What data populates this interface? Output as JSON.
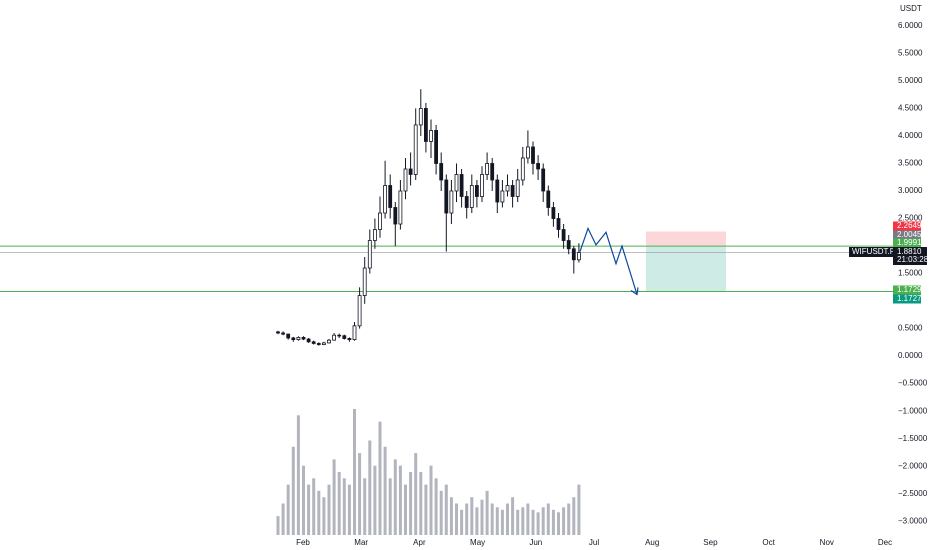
{
  "chart_data": {
    "type": "candlestick",
    "axis_label": "USDT",
    "symbol": "WIFUSDT.P",
    "countdown": "21:03:28",
    "ylim": [
      -3.25,
      6.47
    ],
    "yticks": [
      {
        "value": 6,
        "label": "6.0000"
      },
      {
        "value": 5.5,
        "label": "5.5000"
      },
      {
        "value": 5,
        "label": "5.0000"
      },
      {
        "value": 4.5,
        "label": "4.5000"
      },
      {
        "value": 4,
        "label": "4.0000"
      },
      {
        "value": 3.5,
        "label": "3.5000"
      },
      {
        "value": 3,
        "label": "3.0000"
      },
      {
        "value": 2.5,
        "label": "2.5000"
      },
      {
        "value": 1.5,
        "label": "1.5000"
      },
      {
        "value": 0.5,
        "label": "0.5000"
      },
      {
        "value": 0,
        "label": "0.0000"
      },
      {
        "value": -0.5,
        "label": "−0.5000"
      },
      {
        "value": -1,
        "label": "−1.0000"
      },
      {
        "value": -1.5,
        "label": "−1.5000"
      },
      {
        "value": -2,
        "label": "−2.0000"
      },
      {
        "value": -2.5,
        "label": "−2.5000"
      },
      {
        "value": -3,
        "label": "−3.0000"
      }
    ],
    "months": [
      "Feb",
      "Mar",
      "Apr",
      "May",
      "Jun",
      "Jul",
      "Aug",
      "Sep",
      "Oct",
      "Nov",
      "Dec"
    ],
    "candles": [
      [
        0.44,
        0.46,
        0.4,
        0.42
      ],
      [
        0.42,
        0.45,
        0.38,
        0.4
      ],
      [
        0.4,
        0.41,
        0.3,
        0.33
      ],
      [
        0.33,
        0.35,
        0.26,
        0.3
      ],
      [
        0.3,
        0.36,
        0.28,
        0.34
      ],
      [
        0.34,
        0.36,
        0.29,
        0.31
      ],
      [
        0.31,
        0.33,
        0.24,
        0.26
      ],
      [
        0.26,
        0.28,
        0.21,
        0.23
      ],
      [
        0.23,
        0.25,
        0.19,
        0.21
      ],
      [
        0.21,
        0.26,
        0.2,
        0.24
      ],
      [
        0.24,
        0.31,
        0.23,
        0.29
      ],
      [
        0.29,
        0.42,
        0.28,
        0.38
      ],
      [
        0.38,
        0.41,
        0.33,
        0.37
      ],
      [
        0.37,
        0.39,
        0.3,
        0.32
      ],
      [
        0.32,
        0.34,
        0.26,
        0.3
      ],
      [
        0.3,
        0.62,
        0.28,
        0.55
      ],
      [
        0.55,
        1.25,
        0.5,
        1.1
      ],
      [
        1.1,
        1.8,
        0.95,
        1.6
      ],
      [
        1.6,
        2.3,
        1.5,
        2.1
      ],
      [
        2.1,
        2.5,
        1.95,
        2.3
      ],
      [
        2.3,
        2.9,
        2.15,
        2.6
      ],
      [
        2.6,
        3.55,
        2.5,
        3.1
      ],
      [
        3.1,
        3.3,
        2.5,
        2.7
      ],
      [
        2.7,
        2.8,
        2.0,
        2.4
      ],
      [
        2.4,
        3.2,
        2.3,
        3.0
      ],
      [
        3.0,
        3.6,
        2.85,
        3.4
      ],
      [
        3.4,
        3.7,
        3.1,
        3.3
      ],
      [
        3.3,
        4.5,
        3.2,
        4.2
      ],
      [
        4.2,
        4.85,
        4.0,
        4.5
      ],
      [
        4.5,
        4.6,
        3.7,
        3.9
      ],
      [
        3.9,
        4.3,
        3.6,
        4.1
      ],
      [
        4.1,
        4.2,
        3.3,
        3.5
      ],
      [
        3.5,
        3.7,
        3.0,
        3.2
      ],
      [
        3.2,
        3.3,
        1.9,
        2.6
      ],
      [
        2.6,
        3.2,
        2.4,
        3.0
      ],
      [
        3.0,
        3.5,
        2.8,
        3.3
      ],
      [
        3.3,
        3.4,
        2.7,
        2.9
      ],
      [
        2.9,
        3.0,
        2.5,
        2.7
      ],
      [
        2.7,
        3.3,
        2.6,
        3.1
      ],
      [
        3.1,
        3.2,
        2.7,
        2.9
      ],
      [
        2.9,
        3.45,
        2.8,
        3.3
      ],
      [
        3.3,
        3.7,
        3.2,
        3.5
      ],
      [
        3.5,
        3.6,
        3.0,
        3.2
      ],
      [
        3.2,
        3.3,
        2.6,
        2.8
      ],
      [
        2.8,
        3.2,
        2.7,
        3.0
      ],
      [
        3.0,
        3.3,
        2.9,
        3.1
      ],
      [
        3.1,
        3.2,
        2.7,
        2.9
      ],
      [
        2.9,
        3.4,
        2.8,
        3.2
      ],
      [
        3.2,
        3.8,
        3.1,
        3.6
      ],
      [
        3.6,
        4.1,
        3.5,
        3.8
      ],
      [
        3.8,
        3.9,
        3.3,
        3.5
      ],
      [
        3.5,
        3.65,
        3.2,
        3.4
      ],
      [
        3.4,
        3.5,
        2.8,
        3.0
      ],
      [
        3.0,
        3.1,
        2.55,
        2.7
      ],
      [
        2.7,
        2.8,
        2.35,
        2.5
      ],
      [
        2.5,
        2.6,
        2.15,
        2.3
      ],
      [
        2.3,
        2.4,
        1.95,
        2.1
      ],
      [
        2.1,
        2.2,
        1.85,
        1.95
      ],
      [
        1.95,
        2.0,
        1.5,
        1.75
      ],
      [
        1.75,
        2.05,
        1.7,
        1.881
      ]
    ],
    "volume": [
      15,
      25,
      40,
      70,
      95,
      55,
      40,
      45,
      35,
      30,
      40,
      60,
      50,
      45,
      40,
      100,
      65,
      45,
      75,
      55,
      90,
      70,
      45,
      60,
      55,
      40,
      50,
      65,
      50,
      40,
      55,
      45,
      35,
      40,
      30,
      25,
      20,
      25,
      30,
      22,
      28,
      35,
      25,
      22,
      20,
      25,
      30,
      20,
      22,
      25,
      20,
      18,
      22,
      25,
      20,
      18,
      22,
      25,
      30,
      40
    ],
    "color": "#131722",
    "volume_color": "#b2b5be",
    "levels": [
      {
        "value": 2.2649,
        "label": "2.2649",
        "color": "#f23645",
        "line": false
      },
      {
        "value": 2.0045,
        "label": "2.0045",
        "color": "#787b86",
        "line": false
      },
      {
        "value": 1.9991,
        "label": "1.9991",
        "color": "#4caf50",
        "line": true
      },
      {
        "value": 1.1729,
        "label": "1.1729",
        "color": "#4caf50",
        "line": true
      },
      {
        "value": 1.1727,
        "label": "1.1727",
        "color": "#089981",
        "line": false
      }
    ],
    "last_price": {
      "value": 1.881,
      "label": "1.8810"
    },
    "position": {
      "stop": 2.2649,
      "entry": 1.9991,
      "target": 1.1729
    },
    "projection": [
      1.9,
      2.32,
      2.02,
      2.25,
      1.68,
      2.0,
      1.12
    ],
    "projection_color": "#0d47a1"
  }
}
